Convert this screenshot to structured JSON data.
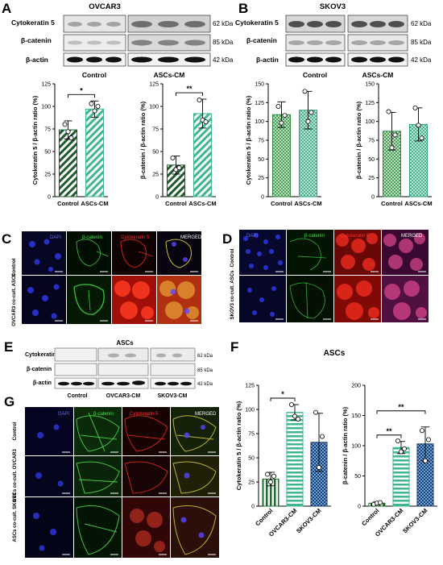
{
  "panels": {
    "A": {
      "letter": "A",
      "title": "OVCAR3",
      "rows": [
        "Cytokeratin 5",
        "β-catenin",
        "β-actin"
      ],
      "kda": [
        "62 kDa",
        "85 kDa",
        "42 kDa"
      ],
      "groups": [
        "Control",
        "ASCs-CM"
      ]
    },
    "B": {
      "letter": "B",
      "title": "SKOV3",
      "rows": [
        "Cytokeratin 5",
        "β-catenin",
        "β-actin"
      ],
      "kda": [
        "62 kDa",
        "85 kDa",
        "42 kDa"
      ],
      "groups": [
        "Control",
        "ASCs-CM"
      ]
    },
    "C": {
      "letter": "C",
      "cols": [
        "DAPI",
        "β-catenin",
        "Cytokeratin 5",
        "MERGED"
      ],
      "rows": [
        "Control",
        "OVCAR3 co-cult. ASCs"
      ]
    },
    "D": {
      "letter": "D",
      "cols": [
        "DAPI",
        "β-catenin",
        "Cytokeratin 5",
        "MERGED"
      ],
      "rows": [
        "Control",
        "SKOV3 co-cult. ASCs"
      ]
    },
    "E": {
      "letter": "E",
      "title": "ASCs",
      "rows": [
        "Cytokeratin 5",
        "β-catenin",
        "β-actin"
      ],
      "kda": [
        "62 kDa",
        "85 kDa",
        "42 kDa"
      ],
      "groups": [
        "Control",
        "OVCAR3-CM",
        "SKOV3-CM"
      ]
    },
    "F": {
      "letter": "F",
      "title": "ASCs"
    },
    "G": {
      "letter": "G",
      "cols": [
        "DAPI",
        "β-catenin",
        "Cytokeratin 5",
        "MERGED"
      ],
      "rows": [
        "Control",
        "ASCs co-cult. OVCAR3",
        "ASCs co-cult. SKOV3"
      ]
    }
  },
  "chart_data": [
    {
      "id": "A1",
      "type": "bar",
      "categories": [
        "Control",
        "ASCs-CM"
      ],
      "values": [
        74,
        97
      ],
      "errors": [
        10,
        9
      ],
      "points": [
        [
          80,
          72,
          65
        ],
        [
          103,
          95,
          100
        ]
      ],
      "ylabel": "Cytokeratin 5 / β-actin ratio (%)",
      "ylim": [
        0,
        125
      ],
      "yticks": [
        0,
        25,
        50,
        75,
        100,
        125
      ],
      "significance": [
        {
          "from": 0,
          "to": 1,
          "label": "*"
        }
      ]
    },
    {
      "id": "A2",
      "type": "bar",
      "categories": [
        "Control",
        "ASCs-CM"
      ],
      "values": [
        35,
        92
      ],
      "errors": [
        10,
        16
      ],
      "points": [
        [
          43,
          30,
          32
        ],
        [
          107,
          85,
          83
        ]
      ],
      "ylabel": "β-catenin / β-actin ratio (%)",
      "ylim": [
        0,
        125
      ],
      "yticks": [
        0,
        25,
        50,
        75,
        100,
        125
      ],
      "significance": [
        {
          "from": 0,
          "to": 1,
          "label": "**"
        }
      ]
    },
    {
      "id": "B1",
      "type": "bar",
      "categories": [
        "Control",
        "ASCs-CM"
      ],
      "values": [
        109,
        115
      ],
      "errors": [
        17,
        25
      ],
      "points": [
        [
          120,
          98,
          108
        ],
        [
          140,
          100,
          112
        ]
      ],
      "ylabel": "Cytokeratin 5 / β-actin ratio (%)",
      "ylim": [
        0,
        150
      ],
      "yticks": [
        0,
        25,
        50,
        75,
        100,
        125,
        150
      ],
      "significance": []
    },
    {
      "id": "B2",
      "type": "bar",
      "categories": [
        "Control",
        "ASCs-CM"
      ],
      "values": [
        87,
        96
      ],
      "errors": [
        25,
        22
      ],
      "points": [
        [
          113,
          65,
          82
        ],
        [
          118,
          95,
          78
        ]
      ],
      "ylabel": "β-catenin / β-actin ratio (%)",
      "ylim": [
        0,
        150
      ],
      "yticks": [
        0,
        25,
        50,
        75,
        100,
        125,
        150
      ],
      "significance": []
    },
    {
      "id": "F1",
      "type": "bar",
      "categories": [
        "Control",
        "OVCAR3-CM",
        "SKOV3-CM"
      ],
      "values": [
        28,
        97,
        66
      ],
      "errors": [
        7,
        8,
        30
      ],
      "points": [
        [
          33,
          25,
          31
        ],
        [
          105,
          93,
          90
        ],
        [
          97,
          40,
          72
        ]
      ],
      "ylabel": "Cytokeratin 5 / β-actin ratio (%)",
      "ylim": [
        0,
        125
      ],
      "yticks": [
        0,
        25,
        50,
        75,
        100,
        125
      ],
      "significance": [
        {
          "from": 0,
          "to": 1,
          "label": "*"
        }
      ]
    },
    {
      "id": "F2",
      "type": "bar",
      "categories": [
        "Control",
        "OVCAR3-CM",
        "SKOV3-CM"
      ],
      "values": [
        5,
        97,
        103
      ],
      "errors": [
        2,
        10,
        28
      ],
      "points": [
        [
          3,
          5,
          6
        ],
        [
          108,
          90,
          95
        ],
        [
          125,
          75,
          110
        ]
      ],
      "ylabel": "β-catenin / β-actin ratio (%)",
      "ylim": [
        0,
        200
      ],
      "yticks": [
        0,
        50,
        100,
        150,
        200
      ],
      "significance": [
        {
          "from": 0,
          "to": 1,
          "label": "**"
        },
        {
          "from": 0,
          "to": 2,
          "label": "**"
        }
      ]
    }
  ],
  "colors": {
    "dark_green": "#1f5a2a",
    "light_green": "#7ccf7a",
    "teal": "#3fb68f",
    "navy": "#2a4a86",
    "blue_fill": "#6fa8dc"
  }
}
